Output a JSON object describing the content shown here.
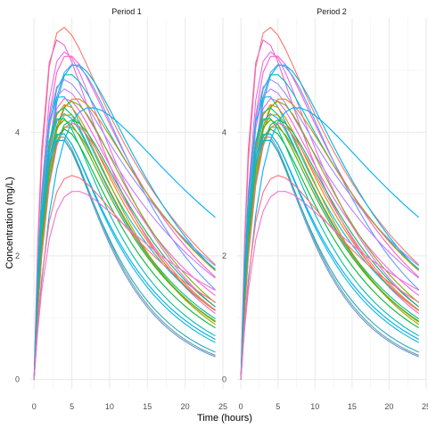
{
  "chart_data": {
    "type": "line",
    "xlabel": "Time (hours)",
    "ylabel": "Concentration (mg/L)",
    "panels": [
      "Period 1",
      "Period 2"
    ],
    "xlim": [
      -0.5,
      25
    ],
    "ylim": [
      -0.15,
      5.85
    ],
    "x_ticks": [
      0,
      5,
      10,
      15,
      20,
      25
    ],
    "y_ticks": [
      0,
      2,
      4
    ],
    "grid": true,
    "legend": "none",
    "x": [
      0,
      0.5,
      1,
      2,
      3,
      4,
      5,
      6,
      7,
      8,
      9,
      10,
      11,
      12,
      13,
      14,
      15,
      16,
      17,
      18,
      19,
      20,
      21,
      22,
      23,
      24
    ],
    "series": [
      {
        "color": "#F8766D",
        "tmax": 3.8,
        "cmax": 5.7,
        "c24": 1.7
      },
      {
        "color": "#F166C8",
        "tmax": 3.2,
        "cmax": 5.5,
        "c24": 0.95
      },
      {
        "color": "#E76BF3",
        "tmax": 4.0,
        "cmax": 5.3,
        "c24": 1.0
      },
      {
        "color": "#FF62BC",
        "tmax": 4.5,
        "cmax": 5.25,
        "c24": 1.45
      },
      {
        "color": "#00B4EF",
        "tmax": 5.5,
        "cmax": 5.1,
        "c24": 1.45
      },
      {
        "color": "#619CFF",
        "tmax": 5.2,
        "cmax": 5.1,
        "c24": 1.15
      },
      {
        "color": "#00BFC4",
        "tmax": 4.5,
        "cmax": 4.95,
        "c24": 1.6
      },
      {
        "color": "#9590FF",
        "tmax": 4.0,
        "cmax": 4.85,
        "c24": 1.7
      },
      {
        "color": "#C77CFF",
        "tmax": 4.0,
        "cmax": 4.7,
        "c24": 1.5
      },
      {
        "color": "#00BADE",
        "tmax": 3.5,
        "cmax": 4.6,
        "c24": 1.0
      },
      {
        "color": "#F564E3",
        "tmax": 4.2,
        "cmax": 4.55,
        "c24": 1.2
      },
      {
        "color": "#D89000",
        "tmax": 5.5,
        "cmax": 4.55,
        "c24": 1.5
      },
      {
        "color": "#7CAE00",
        "tmax": 5.0,
        "cmax": 4.5,
        "c24": 1.0
      },
      {
        "color": "#E58700",
        "tmax": 4.2,
        "cmax": 4.45,
        "c24": 0.95
      },
      {
        "color": "#00C08B",
        "tmax": 3.8,
        "cmax": 4.4,
        "c24": 0.85
      },
      {
        "color": "#00B0F6",
        "tmax": 7.5,
        "cmax": 4.4,
        "c24": 2.3
      },
      {
        "color": "#35A2FF",
        "tmax": 4.0,
        "cmax": 4.3,
        "c24": 0.8
      },
      {
        "color": "#A3A500",
        "tmax": 4.5,
        "cmax": 4.3,
        "c24": 0.7
      },
      {
        "color": "#00C1A3",
        "tmax": 3.5,
        "cmax": 4.25,
        "c24": 0.6
      },
      {
        "color": "#39B600",
        "tmax": 4.0,
        "cmax": 4.2,
        "c24": 0.8
      },
      {
        "color": "#00BD5C",
        "tmax": 5.0,
        "cmax": 4.2,
        "c24": 0.95
      },
      {
        "color": "#FF6C91",
        "tmax": 5.0,
        "cmax": 4.15,
        "c24": 0.9
      },
      {
        "color": "#8EAB00",
        "tmax": 4.5,
        "cmax": 4.1,
        "c24": 0.75
      },
      {
        "color": "#00BA38",
        "tmax": 4.0,
        "cmax": 4.05,
        "c24": 0.7
      },
      {
        "color": "#00A9FF",
        "tmax": 3.5,
        "cmax": 4.0,
        "c24": 0.55
      },
      {
        "color": "#00BCD8",
        "tmax": 3.5,
        "cmax": 4.0,
        "c24": 0.5
      },
      {
        "color": "#6F9BB0",
        "tmax": 3.5,
        "cmax": 3.95,
        "c24": 0.3
      },
      {
        "color": "#5F9AD0",
        "tmax": 3.5,
        "cmax": 3.9,
        "c24": 0.28
      },
      {
        "color": "#1FAEB8",
        "tmax": 3.5,
        "cmax": 3.9,
        "c24": 0.35
      },
      {
        "color": "#FC717F",
        "tmax": 5.0,
        "cmax": 3.3,
        "c24": 1.1
      },
      {
        "color": "#F374CE",
        "tmax": 5.5,
        "cmax": 3.05,
        "c24": 1.3
      }
    ]
  }
}
